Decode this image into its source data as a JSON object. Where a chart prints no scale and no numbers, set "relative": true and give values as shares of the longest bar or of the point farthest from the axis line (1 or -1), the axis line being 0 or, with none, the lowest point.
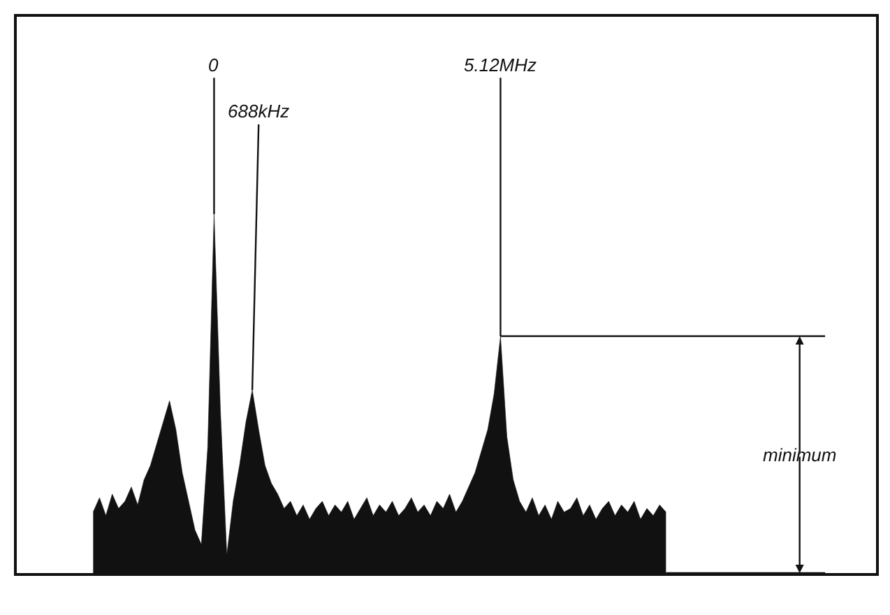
{
  "chart_data": {
    "type": "area",
    "relative": true,
    "color": "#111111",
    "categories": [
      null,
      null,
      null,
      null,
      null,
      null,
      null,
      null,
      null,
      null,
      null,
      null,
      null,
      null,
      null,
      null,
      null,
      null,
      null,
      null,
      null,
      null,
      null,
      null,
      null,
      null,
      null,
      null,
      null,
      null,
      null,
      null,
      null,
      null,
      null,
      null,
      null,
      null,
      null,
      null,
      null,
      null,
      null,
      null,
      null,
      null,
      null,
      null,
      null,
      null,
      null,
      null,
      null,
      null,
      null,
      null,
      null,
      null,
      null,
      null,
      null,
      null,
      null,
      null,
      null,
      null,
      null,
      null,
      null,
      null,
      null,
      null,
      null,
      null,
      null,
      null,
      null,
      null,
      null,
      null,
      null,
      null,
      null,
      null,
      null,
      null,
      null,
      null,
      null,
      null,
      null,
      null,
      null,
      null,
      null,
      null,
      null,
      null,
      null,
      null,
      null,
      null,
      null,
      null,
      null,
      null,
      null,
      null,
      null,
      null,
      null,
      null,
      null,
      null,
      null,
      null
    ],
    "values": [
      0.17,
      0.21,
      0.16,
      0.22,
      0.18,
      0.2,
      0.24,
      0.19,
      0.26,
      0.3,
      0.36,
      0.42,
      0.48,
      0.4,
      0.28,
      0.2,
      0.12,
      0.08,
      0.35,
      1.0,
      0.45,
      0.05,
      0.2,
      0.3,
      0.42,
      0.51,
      0.4,
      0.3,
      0.25,
      0.22,
      0.18,
      0.2,
      0.16,
      0.19,
      0.15,
      0.18,
      0.2,
      0.16,
      0.19,
      0.17,
      0.2,
      0.15,
      0.18,
      0.21,
      0.16,
      0.19,
      0.17,
      0.2,
      0.16,
      0.18,
      0.21,
      0.17,
      0.19,
      0.16,
      0.2,
      0.18,
      0.22,
      0.17,
      0.2,
      0.24,
      0.28,
      0.34,
      0.4,
      0.5,
      0.66,
      0.38,
      0.26,
      0.2,
      0.17,
      0.21,
      0.16,
      0.19,
      0.15,
      0.2,
      0.17,
      0.18,
      0.21,
      0.16,
      0.19,
      0.15,
      0.18,
      0.2,
      0.16,
      0.19,
      0.17,
      0.2,
      0.15,
      0.18,
      0.16,
      0.19,
      0.17,
      null,
      null,
      null,
      null,
      null,
      null,
      null,
      null,
      null,
      null,
      null,
      null,
      null,
      null,
      null,
      null,
      null,
      null,
      null,
      null,
      null,
      null,
      null,
      null,
      null
    ],
    "annotations": [
      "0",
      "688kHz",
      "5.12MHz",
      "minimum"
    ],
    "ref_lines": [
      {
        "axis": "y",
        "value": 0.66
      }
    ],
    "legend": false
  }
}
